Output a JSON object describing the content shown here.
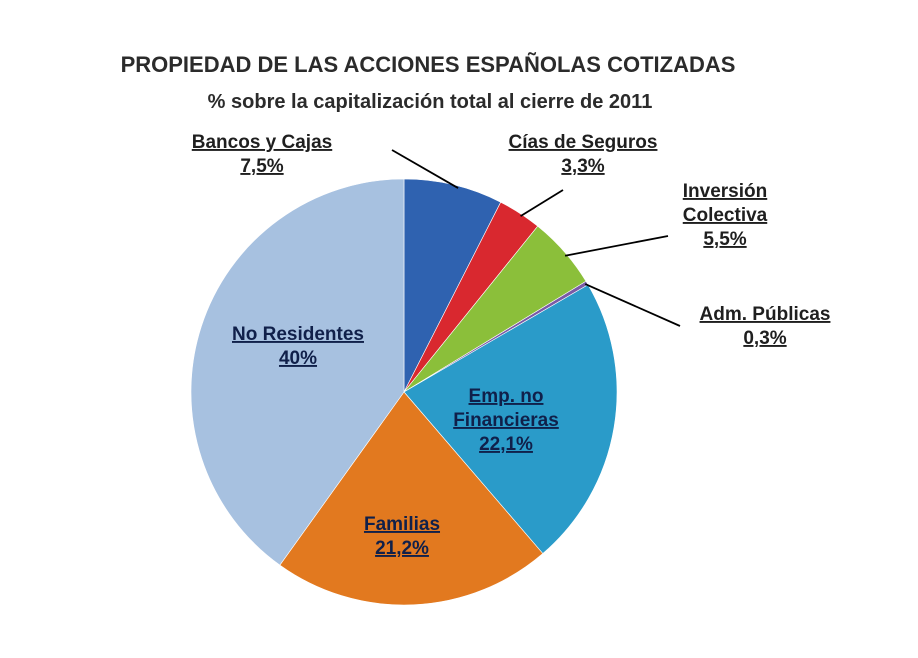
{
  "chart_data": {
    "type": "pie",
    "title": "PROPIEDAD DE LAS ACCIONES ESPAÑOLAS COTIZADAS",
    "subtitle": "% sobre la capitalización total al cierre de 2011",
    "start_angle_deg": 0,
    "direction": "clockwise",
    "slices": [
      {
        "key": "bancos",
        "label": "Bancos y Cajas",
        "value_label": "7,5%",
        "value": 7.5,
        "color": "#2f62b0",
        "label_lines": [
          "Bancos y Cajas",
          "7,5%"
        ]
      },
      {
        "key": "seguros",
        "label": "Cías de Seguros",
        "value_label": "3,3%",
        "value": 3.3,
        "color": "#d9282f",
        "label_lines": [
          "Cías de Seguros",
          "3,3%"
        ]
      },
      {
        "key": "inversion",
        "label": "Inversión Colectiva",
        "value_label": "5,5%",
        "value": 5.5,
        "color": "#8bbf3a",
        "label_lines": [
          "Inversión",
          "Colectiva",
          "5,5%"
        ]
      },
      {
        "key": "adm",
        "label": "Adm. Públicas",
        "value_label": "0,3%",
        "value": 0.3,
        "color": "#7a5aa6",
        "label_lines": [
          "Adm. Públicas",
          "0,3%"
        ]
      },
      {
        "key": "empresas",
        "label": "Emp. no Financieras",
        "value_label": "22,1%",
        "value": 22.1,
        "color": "#2a9bc9",
        "label_lines": [
          "Emp. no",
          "Financieras",
          "22,1%"
        ]
      },
      {
        "key": "familias",
        "label": "Familias",
        "value_label": "21,2%",
        "value": 21.2,
        "color": "#e2791f",
        "label_lines": [
          "Familias",
          "21,2%"
        ]
      },
      {
        "key": "noresidentes",
        "label": "No Residentes",
        "value_label": "40%",
        "value": 40.1,
        "color": "#a7c1e0",
        "label_lines": [
          "No Residentes",
          "40%"
        ]
      }
    ]
  }
}
